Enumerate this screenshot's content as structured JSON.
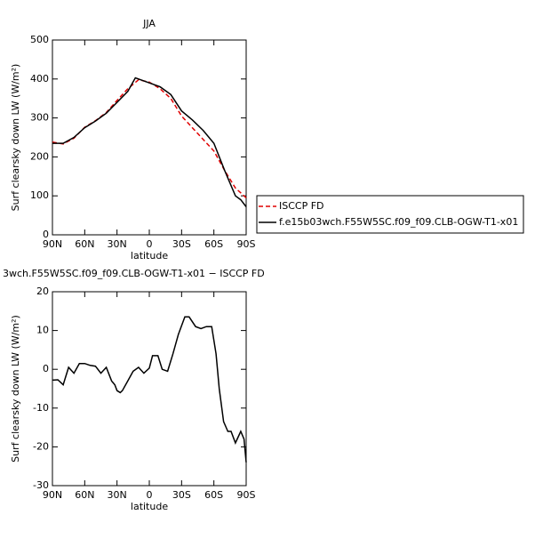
{
  "chart_data": [
    {
      "type": "line",
      "title": "JJA",
      "xlabel": "latitude",
      "ylabel": "Surf clearsky down LW (W/m²)",
      "xlim": [
        90,
        -90
      ],
      "xticks": [
        {
          "value": 90,
          "label": "90N"
        },
        {
          "value": 60,
          "label": "60N"
        },
        {
          "value": 30,
          "label": "30N"
        },
        0,
        {
          "value": -30,
          "label": "30S"
        },
        {
          "value": -60,
          "label": "60S"
        },
        {
          "value": -90,
          "label": "90S"
        }
      ],
      "ylim": [
        0,
        500
      ],
      "yticks": [
        0,
        100,
        200,
        300,
        400,
        500
      ],
      "legend": "right",
      "series": [
        {
          "name": "ISCCP FD",
          "color": "#e00000",
          "linestyle": "dashed",
          "x": [
            90,
            80,
            70,
            60,
            50,
            40,
            30,
            20,
            10,
            0,
            -10,
            -20,
            -30,
            -40,
            -50,
            -60,
            -70,
            -80,
            -90
          ],
          "values": [
            238,
            233,
            248,
            276,
            293,
            314,
            345,
            375,
            398,
            392,
            375,
            350,
            305,
            275,
            245,
            215,
            165,
            120,
            95
          ]
        },
        {
          "name": "f.e15b03wch.F55W5SC.f09_f09.CLB-OGW-T1-x01",
          "color": "#000000",
          "linestyle": "solid",
          "x": [
            90,
            80,
            70,
            60,
            50,
            40,
            30,
            20,
            13,
            0,
            -10,
            -20,
            -30,
            -40,
            -50,
            -60,
            -70,
            -80,
            -85,
            -90
          ],
          "values": [
            235,
            235,
            250,
            275,
            292,
            312,
            340,
            368,
            403,
            390,
            380,
            360,
            318,
            295,
            268,
            235,
            165,
            100,
            90,
            72
          ]
        }
      ]
    },
    {
      "type": "line",
      "title": "3wch.F55W5SC.f09_f09.CLB-OGW-T1-x01 − ISCCP FD",
      "xlabel": "latitude",
      "ylabel": "Surf clearsky down LW (W/m²)",
      "xlim": [
        90,
        -90
      ],
      "xticks": [
        {
          "value": 90,
          "label": "90N"
        },
        {
          "value": 60,
          "label": "60N"
        },
        {
          "value": 30,
          "label": "30N"
        },
        0,
        {
          "value": -30,
          "label": "30S"
        },
        {
          "value": -60,
          "label": "60S"
        },
        {
          "value": -90,
          "label": "90S"
        }
      ],
      "ylim": [
        -30,
        20
      ],
      "yticks": [
        -30,
        -20,
        -10,
        0,
        10,
        20
      ],
      "series": [
        {
          "color": "#000000",
          "linestyle": "solid",
          "x": [
            90,
            85,
            80,
            75,
            70,
            65,
            60,
            55,
            50,
            45,
            40,
            35,
            32,
            30,
            27,
            25,
            20,
            15,
            10,
            5,
            0,
            -3,
            -8,
            -12,
            -17,
            -22,
            -27,
            -33,
            -37,
            -43,
            -48,
            -53,
            -58,
            -62,
            -65,
            -69,
            -73,
            -76,
            -80,
            -85,
            -88,
            -90
          ],
          "values": [
            -2.8,
            -2.7,
            -4,
            0.5,
            -1,
            1.5,
            1.5,
            1,
            0.8,
            -1,
            0.5,
            -3,
            -4,
            -5.5,
            -6,
            -5.5,
            -3,
            -0.5,
            0.5,
            -1,
            0.3,
            3.5,
            3.5,
            0,
            -0.5,
            4,
            9,
            13.5,
            13.5,
            11,
            10.5,
            11,
            11,
            4,
            -5,
            -13.5,
            -16,
            -16,
            -19,
            -16,
            -18,
            -24
          ]
        }
      ]
    }
  ]
}
